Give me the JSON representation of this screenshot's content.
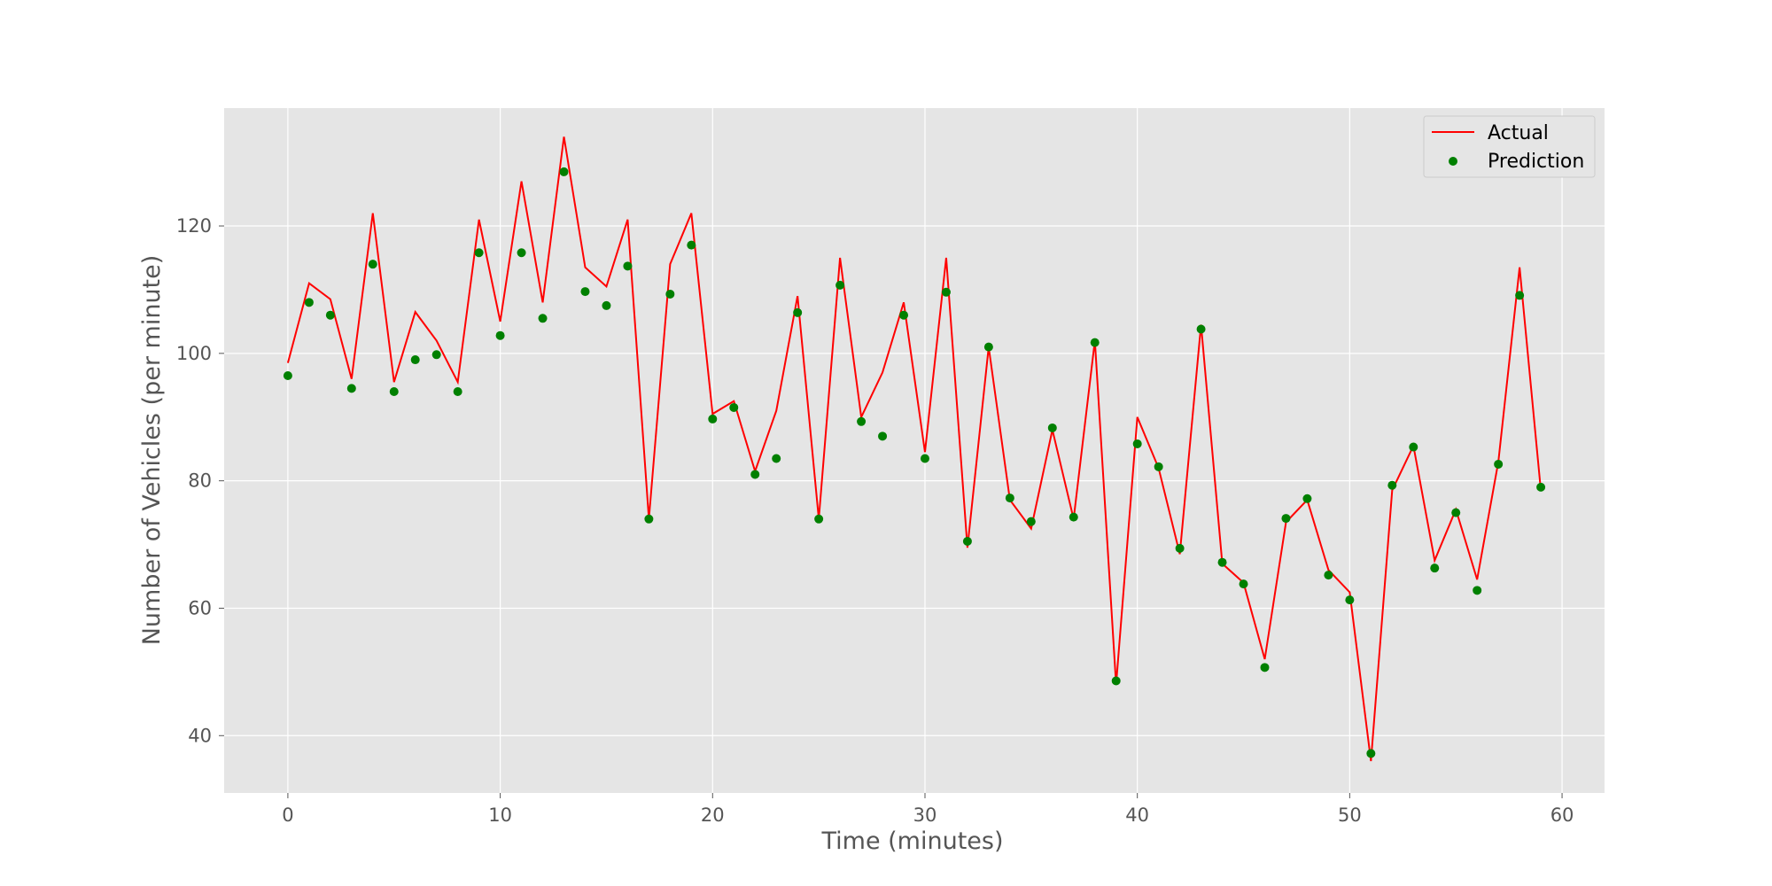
{
  "chart_data": {
    "type": "line",
    "title": "",
    "xlabel": "Time (minutes)",
    "ylabel": "Number of Vehicles (per minute)",
    "xlim": [
      -3,
      62
    ],
    "ylim": [
      31,
      138.5
    ],
    "xticks": [
      0,
      10,
      20,
      30,
      40,
      50,
      60
    ],
    "yticks": [
      40,
      60,
      80,
      100,
      120
    ],
    "grid": true,
    "legend_position": "top-right",
    "background": "#e5e5e5",
    "grid_color": "#ffffff",
    "series": [
      {
        "name": "Actual",
        "style": "line",
        "color": "#ff0000",
        "x": [
          0,
          1,
          2,
          3,
          4,
          5,
          6,
          7,
          8,
          9,
          10,
          11,
          12,
          13,
          14,
          15,
          16,
          17,
          18,
          19,
          20,
          21,
          22,
          23,
          24,
          25,
          26,
          27,
          28,
          29,
          30,
          31,
          32,
          33,
          34,
          35,
          36,
          37,
          38,
          39,
          40,
          41,
          42,
          43,
          44,
          45,
          46,
          47,
          48,
          49,
          50,
          51,
          52,
          53,
          54,
          55,
          56,
          57,
          58,
          59
        ],
        "values": [
          98.5,
          111,
          108.5,
          96,
          122,
          95.5,
          106.5,
          102,
          95.5,
          121,
          105,
          127,
          108,
          134,
          113.5,
          110.5,
          121,
          74,
          114,
          122,
          90.5,
          92.5,
          81.5,
          91,
          109,
          74,
          115,
          90,
          97,
          108,
          84.5,
          115,
          69.5,
          101,
          77,
          72.5,
          88,
          74,
          102,
          48,
          90,
          82,
          68.5,
          104.5,
          67,
          64,
          52,
          73.5,
          77,
          66,
          62.5,
          36,
          78.5,
          85.5,
          67.5,
          75.5,
          64.5,
          83,
          113.5,
          78.5
        ]
      },
      {
        "name": "Prediction",
        "style": "scatter",
        "color": "#008000",
        "x": [
          0,
          1,
          2,
          3,
          4,
          5,
          6,
          7,
          8,
          9,
          10,
          11,
          12,
          13,
          14,
          15,
          16,
          17,
          18,
          19,
          20,
          21,
          22,
          23,
          24,
          25,
          26,
          27,
          28,
          29,
          30,
          31,
          32,
          33,
          34,
          35,
          36,
          37,
          38,
          39,
          40,
          41,
          42,
          43,
          44,
          45,
          46,
          47,
          48,
          49,
          50,
          51,
          52,
          53,
          54,
          55,
          56,
          57,
          58,
          59
        ],
        "values": [
          96.5,
          108,
          106,
          94.5,
          114,
          94,
          99,
          99.8,
          94,
          115.8,
          102.8,
          115.8,
          105.5,
          128.5,
          109.7,
          107.5,
          113.7,
          74,
          109.3,
          117,
          89.7,
          91.5,
          81,
          83.5,
          106.4,
          74,
          110.7,
          89.3,
          87,
          106,
          83.5,
          109.6,
          70.5,
          101,
          77.3,
          73.6,
          88.3,
          74.3,
          101.7,
          48.6,
          85.8,
          82.2,
          69.4,
          103.8,
          67.2,
          63.8,
          50.7,
          74.1,
          77.2,
          65.2,
          61.3,
          37.2,
          79.3,
          85.3,
          66.3,
          75,
          62.8,
          82.6,
          109.1,
          79
        ]
      }
    ]
  }
}
